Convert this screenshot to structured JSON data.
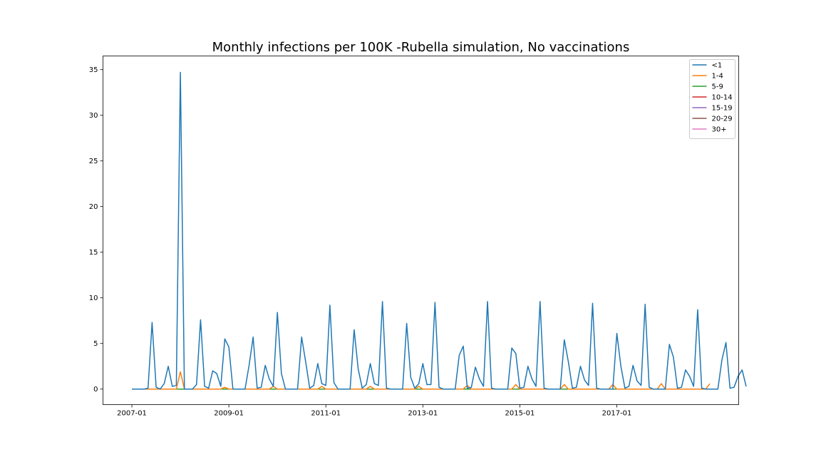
{
  "chart_data": {
    "type": "line",
    "title": "Monthly infections per 100K -Rubella simulation, No vaccinations",
    "xlabel": "",
    "ylabel": "",
    "x_start": "2007-01",
    "x_end": "2018-12",
    "x_ticks": [
      "2007-01",
      "2009-01",
      "2011-01",
      "2013-01",
      "2015-01",
      "2017-01"
    ],
    "y_ticks": [
      0,
      5,
      10,
      15,
      20,
      25,
      30,
      35
    ],
    "ylim": [
      -1.7,
      36.5
    ],
    "legend_position": "top-right",
    "grid": false,
    "series": [
      {
        "name": "<1",
        "color": "#1f77b4",
        "values": [
          0,
          0,
          0,
          0,
          0.1,
          7.3,
          0.2,
          0,
          0.6,
          2.5,
          0.3,
          0.4,
          34.7,
          0,
          0,
          0,
          0.5,
          7.6,
          0.3,
          0.1,
          2.0,
          1.7,
          0.3,
          5.5,
          4.6,
          0,
          0,
          0,
          0,
          2.6,
          5.7,
          0.1,
          0.2,
          2.6,
          1.1,
          0.3,
          8.4,
          1.7,
          0,
          0,
          0,
          0,
          5.7,
          3.0,
          0.1,
          0.4,
          2.8,
          0.6,
          0.4,
          9.2,
          0.7,
          0,
          0,
          0,
          0,
          6.5,
          2.2,
          0.1,
          0.5,
          2.8,
          0.6,
          0.4,
          9.6,
          0.1,
          0,
          0,
          0,
          0,
          7.2,
          1.3,
          0.1,
          0.6,
          2.8,
          0.5,
          0.5,
          9.5,
          0.2,
          0,
          0,
          0,
          0,
          3.7,
          4.7,
          0.1,
          0.2,
          2.4,
          1.1,
          0.3,
          9.6,
          0.1,
          0,
          0,
          0,
          0,
          4.5,
          3.9,
          0.1,
          0.2,
          2.5,
          1.1,
          0.3,
          9.6,
          0.1,
          0,
          0,
          0,
          0,
          5.4,
          3.0,
          0.1,
          0.2,
          2.5,
          1.0,
          0.4,
          9.4,
          0.1,
          0,
          0,
          0,
          0,
          6.1,
          2.5,
          0.1,
          0.3,
          2.6,
          0.9,
          0.4,
          9.3,
          0.2,
          0,
          0,
          0,
          0,
          4.9,
          3.5,
          0.1,
          0.2,
          2.1,
          1.4,
          0.3,
          8.7,
          0.1,
          0,
          0,
          0,
          0,
          3.2,
          5.1,
          0.1,
          0.2,
          1.4,
          2.1,
          0.3
        ]
      },
      {
        "name": "1-4",
        "color": "#ff7f0e",
        "peaks": {
          "12": 1.9,
          "23": 0.2,
          "35": 0.3,
          "47": 0.3,
          "59": 0.3,
          "71": 0.3,
          "83": 0.4,
          "95": 0.5,
          "107": 0.5,
          "119": 0.5,
          "131": 0.6,
          "143": 0.6
        }
      },
      {
        "name": "5-9",
        "color": "#2ca02c"
      },
      {
        "name": "10-14",
        "color": "#d62728"
      },
      {
        "name": "15-19",
        "color": "#9467bd"
      },
      {
        "name": "20-29",
        "color": "#8c564b"
      },
      {
        "name": "30+",
        "color": "#e377c2"
      }
    ]
  }
}
